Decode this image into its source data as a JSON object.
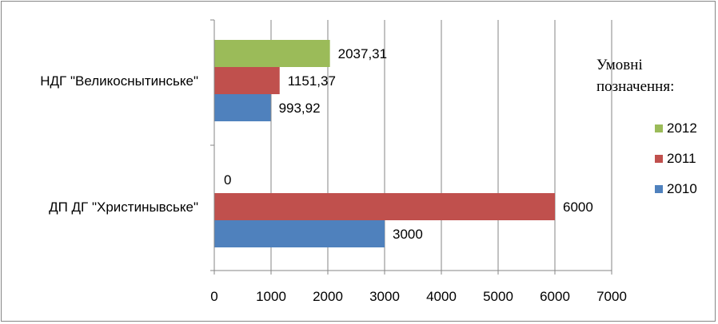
{
  "chart_data": {
    "type": "bar",
    "orientation": "horizontal",
    "categories": [
      "НДГ \"Великоснытинське\"",
      "ДП ДГ \"Христинывське\""
    ],
    "series": [
      {
        "name": "2012",
        "color": "#9BBB59",
        "values": [
          2037.31,
          0
        ],
        "labels": [
          "2037,31",
          "0"
        ]
      },
      {
        "name": "2011",
        "color": "#C0504D",
        "values": [
          1151.37,
          6000
        ],
        "labels": [
          "1151,37",
          "6000"
        ]
      },
      {
        "name": "2010",
        "color": "#4F81BD",
        "values": [
          993.92,
          3000
        ],
        "labels": [
          "993,92",
          "3000"
        ]
      }
    ],
    "xlim": [
      0,
      7000
    ],
    "xticks": [
      "0",
      "1000",
      "2000",
      "3000",
      "4000",
      "5000",
      "6000",
      "7000"
    ],
    "grid": "vertical",
    "legend": {
      "title": "Умовні позначення:",
      "placement": "right"
    }
  }
}
